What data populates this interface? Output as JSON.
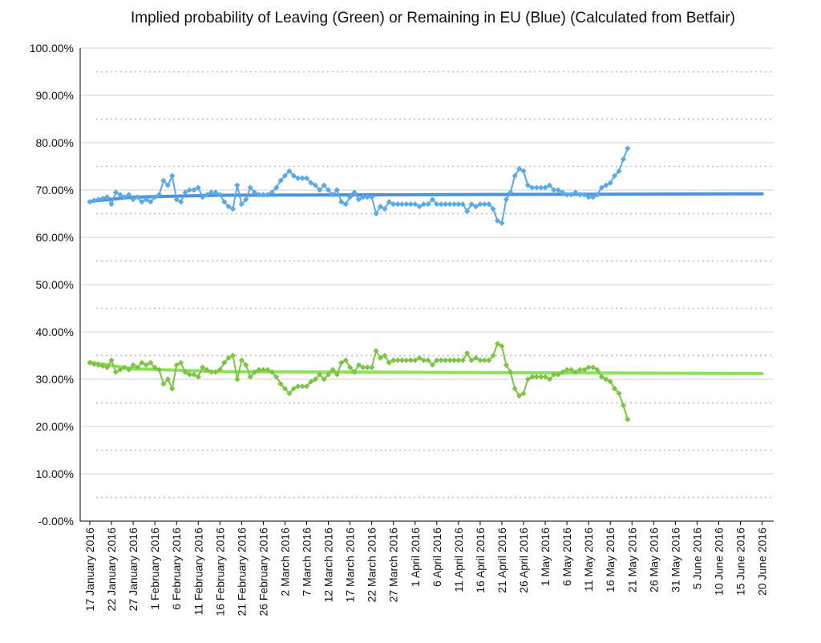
{
  "chart_data": {
    "type": "line",
    "title": "Implied probability of Leaving (Green) or Remaining in EU (Blue) (Calculated from Betfair)",
    "categories": [
      "17 January 2016",
      null,
      null,
      null,
      null,
      "22 January 2016",
      null,
      null,
      null,
      null,
      "27 January 2016",
      null,
      null,
      null,
      null,
      "1 February 2016",
      null,
      null,
      null,
      null,
      "6 February 2016",
      null,
      null,
      null,
      null,
      "11 February 2016",
      null,
      null,
      null,
      null,
      "16 February 2016",
      null,
      null,
      null,
      null,
      "21 February 2016",
      null,
      null,
      null,
      null,
      "26 February 2016",
      null,
      null,
      null,
      null,
      "2 March 2016",
      null,
      null,
      null,
      null,
      "7 March 2016",
      null,
      null,
      null,
      null,
      "12 March 2016",
      null,
      null,
      null,
      null,
      "17 March 2016",
      null,
      null,
      null,
      null,
      "22 March 2016",
      null,
      null,
      null,
      null,
      "27 March 2016",
      null,
      null,
      null,
      null,
      "1 April 2016",
      null,
      null,
      null,
      null,
      "6 April 2016",
      null,
      null,
      null,
      null,
      "11 April 2016",
      null,
      null,
      null,
      null,
      "16 April 2016",
      null,
      null,
      null,
      null,
      "21 April 2016",
      null,
      null,
      null,
      null,
      "26 April 2016",
      null,
      null,
      null,
      null,
      "1 May 2016",
      null,
      null,
      null,
      null,
      "6 May 2016",
      null,
      null,
      null,
      null,
      "11 May 2016",
      null,
      null,
      null,
      null,
      "16 May 2016",
      null,
      null,
      null,
      null,
      "21 May 2016",
      null,
      null,
      null,
      null,
      "26 May 2016",
      null,
      null,
      null,
      null,
      "31 May 2016",
      null,
      null,
      null,
      null,
      "5 June 2016",
      null,
      null,
      null,
      null,
      "10 June 2016",
      null,
      null,
      null,
      null,
      "15 June 2016",
      null,
      null,
      null,
      null,
      "20 June 2016",
      null,
      null,
      null,
      null
    ],
    "series": [
      {
        "color": "#5aa9e8",
        "values": [
          67.5,
          67.8,
          68,
          68.2,
          68.5,
          67,
          69.5,
          69,
          68.5,
          69,
          68,
          68.5,
          67.5,
          68,
          67.5,
          68.5,
          69,
          72,
          71,
          73,
          68,
          67.5,
          69.5,
          70,
          70,
          70.5,
          68.5,
          69,
          69.5,
          69.5,
          69,
          67.5,
          66.5,
          66,
          71,
          67,
          68,
          70.5,
          69.5,
          69,
          69,
          69,
          69.5,
          70.5,
          72,
          73,
          74,
          73,
          72.5,
          72.5,
          72.5,
          71.5,
          71,
          70,
          71,
          70,
          69,
          70,
          67.5,
          67,
          68.5,
          69.5,
          68,
          68.5,
          68.5,
          68.5,
          65,
          66.5,
          66,
          67.5,
          67,
          67,
          67,
          67,
          67,
          67,
          66.5,
          67,
          67,
          68,
          67,
          67,
          67,
          67,
          67,
          67,
          67,
          65.5,
          67,
          66.5,
          67,
          67,
          67,
          66,
          63.5,
          63,
          68,
          69.5,
          73,
          74.5,
          74,
          71,
          70.5,
          70.5,
          70.5,
          70.5,
          71,
          70,
          70,
          69.5,
          69,
          69,
          69.5,
          69,
          69,
          68.5,
          68.5,
          69,
          70.5,
          71,
          71.5,
          73,
          74,
          76.5,
          78.8,
          null,
          null,
          null,
          null,
          null,
          null,
          null,
          null,
          null,
          null,
          null,
          null,
          null,
          null,
          null,
          null,
          null,
          null,
          null,
          null,
          null,
          null,
          null,
          null,
          null,
          null,
          null,
          null,
          null,
          null,
          null,
          null,
          null,
          null,
          null
        ]
      },
      {
        "color": "#7cc544",
        "values": [
          33.5,
          33.2,
          33,
          32.8,
          32.5,
          34,
          31.5,
          32,
          32.5,
          32,
          33,
          32.5,
          33.5,
          33,
          33.5,
          32.5,
          32,
          29,
          30,
          28,
          33,
          33.5,
          31.5,
          31,
          31,
          30.5,
          32.5,
          32,
          31.5,
          31.5,
          32,
          33.5,
          34.5,
          35,
          30,
          34,
          33,
          30.5,
          31.5,
          32,
          32,
          32,
          31.5,
          30.5,
          29,
          28,
          27,
          28,
          28.5,
          28.5,
          28.5,
          29.5,
          30,
          31,
          30,
          31,
          32,
          31,
          33.5,
          34,
          32.5,
          31.5,
          33,
          32.5,
          32.5,
          32.5,
          36,
          34.5,
          35,
          33.5,
          34,
          34,
          34,
          34,
          34,
          34,
          34.5,
          34,
          34,
          33,
          34,
          34,
          34,
          34,
          34,
          34,
          34,
          35.5,
          34,
          34.5,
          34,
          34,
          34,
          35,
          37.5,
          37,
          33,
          31.5,
          28,
          26.5,
          27,
          30,
          30.5,
          30.5,
          30.5,
          30.5,
          30,
          31,
          31,
          31.5,
          32,
          32,
          31.5,
          32,
          32,
          32.5,
          32.5,
          32,
          30.5,
          30,
          29.5,
          28,
          27,
          24.5,
          21.5,
          null,
          null,
          null,
          null,
          null,
          null,
          null,
          null,
          null,
          null,
          null,
          null,
          null,
          null,
          null,
          null,
          null,
          null,
          null,
          null,
          null,
          null,
          null,
          null,
          null,
          null,
          null,
          null,
          null,
          null,
          null,
          null,
          null,
          null,
          null
        ]
      }
    ],
    "trendlines": [
      {
        "color": "#4b93dc",
        "x": [
          "17 January 2016",
          "27 January 2016",
          "16 February 2016",
          "20 June 2016"
        ],
        "values": [
          67.6,
          68.5,
          68.9,
          69.2
        ]
      },
      {
        "color": "#8ee25a",
        "x": [
          "17 January 2016",
          "27 January 2016",
          "16 February 2016",
          "20 June 2016"
        ],
        "values": [
          33.6,
          32.2,
          31.6,
          31.2
        ]
      }
    ],
    "ylim": [
      0,
      100
    ],
    "yticks": [
      {
        "value": 0,
        "label": "-0.00%"
      },
      {
        "value": 10,
        "label": "10.00%"
      },
      {
        "value": 20,
        "label": "20.00%"
      },
      {
        "value": 30,
        "label": "30.00%"
      },
      {
        "value": 40,
        "label": "40.00%"
      },
      {
        "value": 50,
        "label": "50.00%"
      },
      {
        "value": 60,
        "label": "60.00%"
      },
      {
        "value": 70,
        "label": "70.00%"
      },
      {
        "value": 80,
        "label": "80.00%"
      },
      {
        "value": 90,
        "label": "90.00%"
      },
      {
        "value": 100,
        "label": "100.00%"
      }
    ],
    "minor_yticks": [
      5,
      15,
      25,
      35,
      45,
      55,
      65,
      75,
      85,
      95
    ],
    "grid": true
  }
}
